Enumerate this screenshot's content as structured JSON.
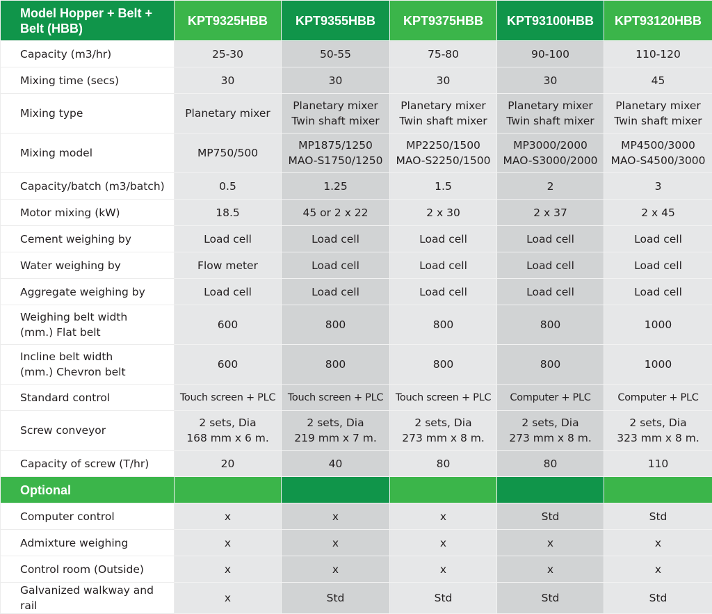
{
  "header": {
    "title": "Model Hopper + Belt + Belt (HBB)",
    "models": [
      "KPT9325HBB",
      "KPT9355HBB",
      "KPT9375HBB",
      "KPT93100HBB",
      "KPT93120HBB"
    ]
  },
  "colors": {
    "dark_green": "#10954a",
    "light_green": "#3bb54a",
    "gray_light": "#e6e7e8",
    "gray_dark": "#d1d3d4"
  },
  "rows": [
    {
      "label": "Capacity (m3/hr)",
      "values": [
        "25-30",
        "50-55",
        "75-80",
        "90-100",
        "110-120"
      ]
    },
    {
      "label": "Mixing time (secs)",
      "values": [
        "30",
        "30",
        "30",
        "30",
        "45"
      ]
    },
    {
      "label": "Mixing type",
      "values": [
        "Planetary mixer",
        "Planetary mixer\nTwin shaft mixer",
        "Planetary mixer\nTwin shaft mixer",
        "Planetary mixer\nTwin shaft mixer",
        "Planetary mixer\nTwin shaft mixer"
      ]
    },
    {
      "label": "Mixing model",
      "values": [
        "MP750/500",
        "MP1875/1250\nMAO-S1750/1250",
        "MP2250/1500\nMAO-S2250/1500",
        "MP3000/2000\nMAO-S3000/2000",
        "MP4500/3000\nMAO-S4500/3000"
      ]
    },
    {
      "label": "Capacity/batch (m3/batch)",
      "values": [
        "0.5",
        "1.25",
        "1.5",
        "2",
        "3"
      ]
    },
    {
      "label": "Motor mixing (kW)",
      "values": [
        "18.5",
        "45 or 2 x 22",
        "2 x 30",
        "2 x 37",
        "2 x 45"
      ]
    },
    {
      "label": "Cement weighing by",
      "values": [
        "Load cell",
        "Load cell",
        "Load cell",
        "Load cell",
        "Load cell"
      ]
    },
    {
      "label": "Water weighing by",
      "values": [
        "Flow meter",
        "Load cell",
        "Load cell",
        "Load cell",
        "Load cell"
      ]
    },
    {
      "label": "Aggregate weighing by",
      "values": [
        "Load cell",
        "Load cell",
        "Load cell",
        "Load cell",
        "Load cell"
      ]
    },
    {
      "label": "Weighing belt width\n(mm.) Flat belt",
      "values": [
        "600",
        "800",
        "800",
        "800",
        "1000"
      ]
    },
    {
      "label": "Incline belt width\n(mm.) Chevron belt",
      "values": [
        "600",
        "800",
        "800",
        "800",
        "1000"
      ]
    },
    {
      "label": "Standard control",
      "values": [
        "Touch screen + PLC",
        "Touch screen + PLC",
        "Touch screen + PLC",
        "Computer + PLC",
        "Computer + PLC"
      ],
      "small": true
    },
    {
      "label": "Screw conveyor",
      "values": [
        "2 sets, Dia\n168 mm x 6 m.",
        "2 sets, Dia\n219 mm x 7 m.",
        "2 sets, Dia\n273 mm x 8 m.",
        "2 sets, Dia\n273 mm x 8 m.",
        "2 sets, Dia\n323 mm x 8 m."
      ]
    },
    {
      "label": "Capacity of screw (T/hr)",
      "values": [
        "20",
        "40",
        "80",
        "80",
        "110"
      ]
    }
  ],
  "optional": {
    "title": "Optional",
    "rows": [
      {
        "label": "Computer control",
        "values": [
          "x",
          "x",
          "x",
          "Std",
          "Std"
        ]
      },
      {
        "label": "Admixture weighing",
        "values": [
          "x",
          "x",
          "x",
          "x",
          "x"
        ]
      },
      {
        "label": "Control room (Outside)",
        "values": [
          "x",
          "x",
          "x",
          "x",
          "x"
        ]
      },
      {
        "label": "Galvanized walkway and rail",
        "values": [
          "x",
          "Std",
          "Std",
          "Std",
          "Std"
        ]
      }
    ]
  }
}
